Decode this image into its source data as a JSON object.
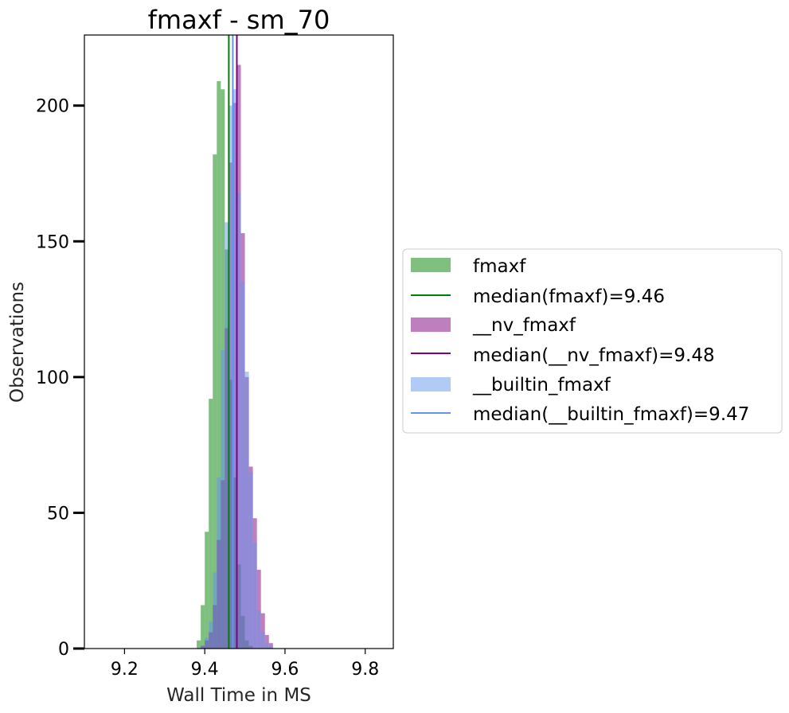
{
  "chart_data": {
    "type": "histogram",
    "title": "fmaxf - sm_70",
    "xlabel": "Wall Time in MS",
    "ylabel": "Observations",
    "xlim": [
      9.1,
      9.87
    ],
    "ylim": [
      0,
      226
    ],
    "xticks": [
      "9.2",
      "9.4",
      "9.6",
      "9.8"
    ],
    "xtick_values": [
      9.2,
      9.4,
      9.6,
      9.8
    ],
    "yticks": [
      "0",
      "50",
      "100",
      "150",
      "200"
    ],
    "ytick_values": [
      0,
      50,
      100,
      150,
      200
    ],
    "grid": false,
    "legend_position": "right-outside",
    "series": [
      {
        "name": "fmaxf",
        "color": "#008000",
        "alpha": 0.5,
        "bin_edges": [
          9.38,
          9.39,
          9.4,
          9.41,
          9.42,
          9.43,
          9.44,
          9.45,
          9.46,
          9.47,
          9.48,
          9.49,
          9.5,
          9.51,
          9.52,
          9.53,
          9.54,
          9.55
        ],
        "counts": [
          3,
          16,
          43,
          92,
          182,
          209,
          206,
          147,
          99,
          63,
          31,
          12,
          3,
          1,
          0,
          0,
          0
        ],
        "median": 9.46,
        "median_label": "median(fmaxf)=9.46"
      },
      {
        "name": "__nv_fmaxf",
        "color": "#800080",
        "alpha": 0.5,
        "bin_edges": [
          9.39,
          9.4,
          9.41,
          9.42,
          9.43,
          9.44,
          9.45,
          9.46,
          9.47,
          9.48,
          9.49,
          9.5,
          9.51,
          9.52,
          9.53,
          9.54,
          9.55,
          9.56,
          9.57,
          9.58
        ],
        "counts": [
          1,
          3,
          6,
          16,
          40,
          62,
          118,
          179,
          201,
          215,
          153,
          100,
          67,
          48,
          29,
          13,
          5,
          2,
          0
        ],
        "median": 9.48,
        "median_label": "median(__nv_fmaxf)=9.48"
      },
      {
        "name": "__builtin_fmaxf",
        "color": "#6495ed",
        "alpha": 0.5,
        "bin_edges": [
          9.39,
          9.4,
          9.41,
          9.42,
          9.43,
          9.44,
          9.45,
          9.46,
          9.47,
          9.48,
          9.49,
          9.5,
          9.51,
          9.52,
          9.53,
          9.54,
          9.55,
          9.56,
          9.57
        ],
        "counts": [
          1,
          4,
          10,
          28,
          63,
          110,
          157,
          200,
          206,
          168,
          135,
          102,
          65,
          39,
          14,
          6,
          2,
          1
        ],
        "median": 9.47,
        "median_label": "median(__builtin_fmaxf)=9.47"
      }
    ]
  }
}
